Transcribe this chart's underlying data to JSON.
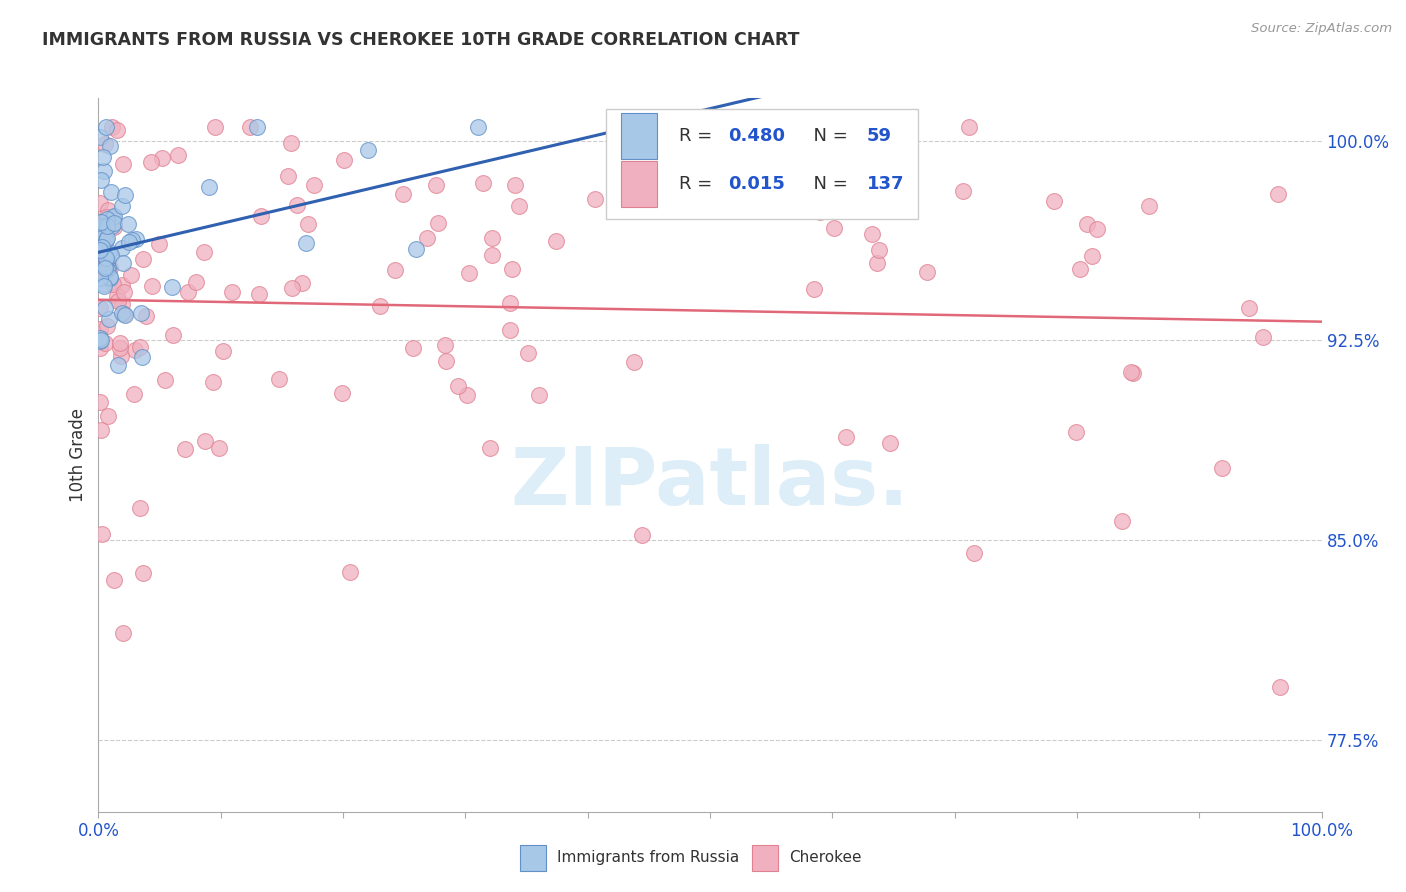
{
  "title": "IMMIGRANTS FROM RUSSIA VS CHEROKEE 10TH GRADE CORRELATION CHART",
  "source": "Source: ZipAtlas.com",
  "ylabel": "10th Grade",
  "ytick_labels": [
    "77.5%",
    "85.0%",
    "92.5%",
    "100.0%"
  ],
  "ytick_values": [
    0.775,
    0.85,
    0.925,
    1.0
  ],
  "legend_r1": "0.480",
  "legend_n1": "59",
  "legend_r2": "0.015",
  "legend_n2": "137",
  "blue_fill": "#a8c8e8",
  "blue_edge": "#6090c8",
  "pink_fill": "#f0b0c0",
  "pink_edge": "#e08090",
  "line_blue_color": "#3060b0",
  "line_pink_color": "#e06878",
  "grid_color": "#cccccc",
  "title_color": "#333333",
  "tick_label_color": "#2255cc",
  "source_color": "#999999",
  "watermark_color": "#ddeef8",
  "legend_text_black": "#333333",
  "legend_text_blue": "#2255cc"
}
